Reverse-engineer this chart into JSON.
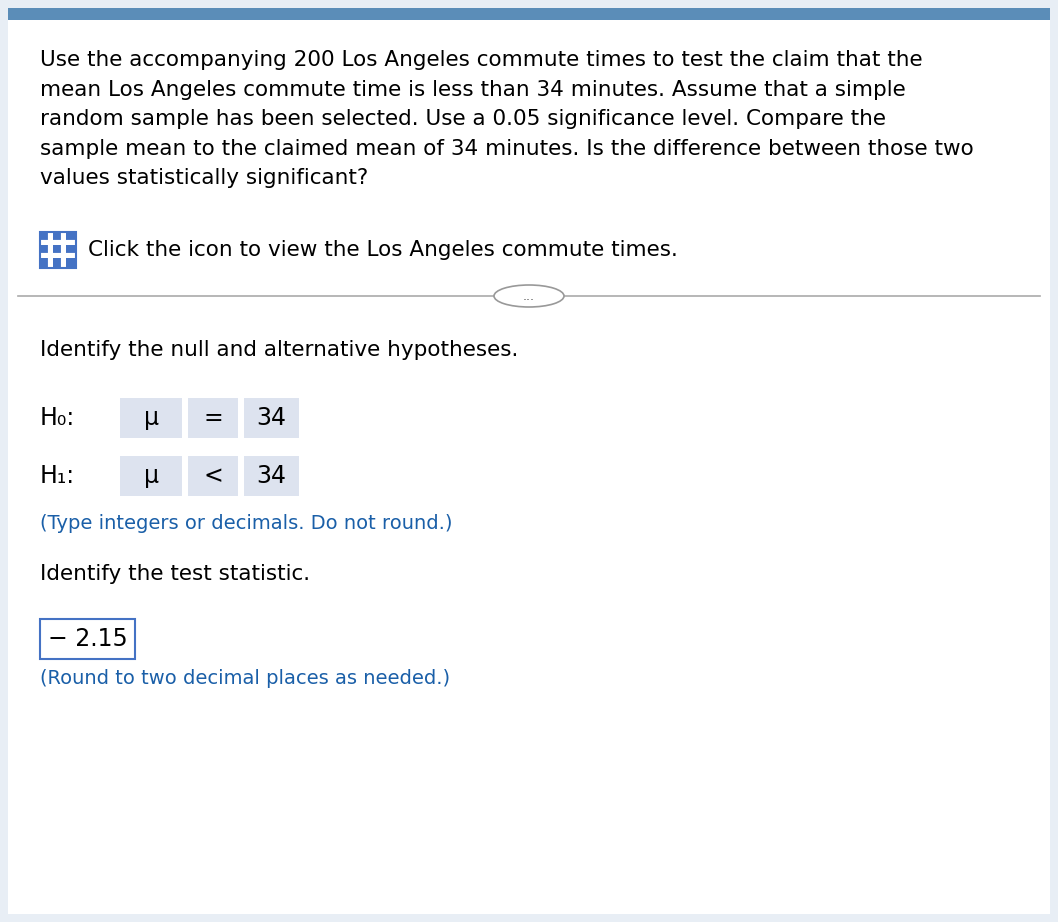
{
  "background_color": "#e8eef5",
  "panel_color": "#ffffff",
  "top_bar_color": "#5b8db8",
  "paragraph_text": "Use the accompanying 200 Los Angeles commute times to test the claim that the\nmean Los Angeles commute time is less than 34 minutes. Assume that a simple\nrandom sample has been selected. Use a 0.05 significance level. Compare the\nsample mean to the claimed mean of 34 minutes. Is the difference between those two\nvalues statistically significant?",
  "icon_text": "Click the icon to view the Los Angeles commute times.",
  "divider_text": "...",
  "section1_label": "Identify the null and alternative hypotheses.",
  "H0_label": "H₀:",
  "H0_mu": "μ",
  "H0_op": "=",
  "H0_val": "34",
  "H1_label": "H₁:",
  "H1_mu": "μ",
  "H1_op": "<",
  "H1_val": "34",
  "hint1": "(Type integers or decimals. Do not round.)",
  "section2_label": "Identify the test statistic.",
  "test_stat": "− 2.15",
  "hint2": "(Round to two decimal places as needed.)",
  "text_color": "#000000",
  "blue_text_color": "#1a5fa8",
  "box_bg_color": "#dde3ef",
  "box_border_color": "#4472c4",
  "stat_box_border_color": "#4472c4",
  "stat_box_bg_color": "#ffffff",
  "font_size_body": 15.5,
  "font_size_hyp": 17,
  "font_size_hint": 14,
  "font_size_stat": 17,
  "font_size_section": 15.5
}
